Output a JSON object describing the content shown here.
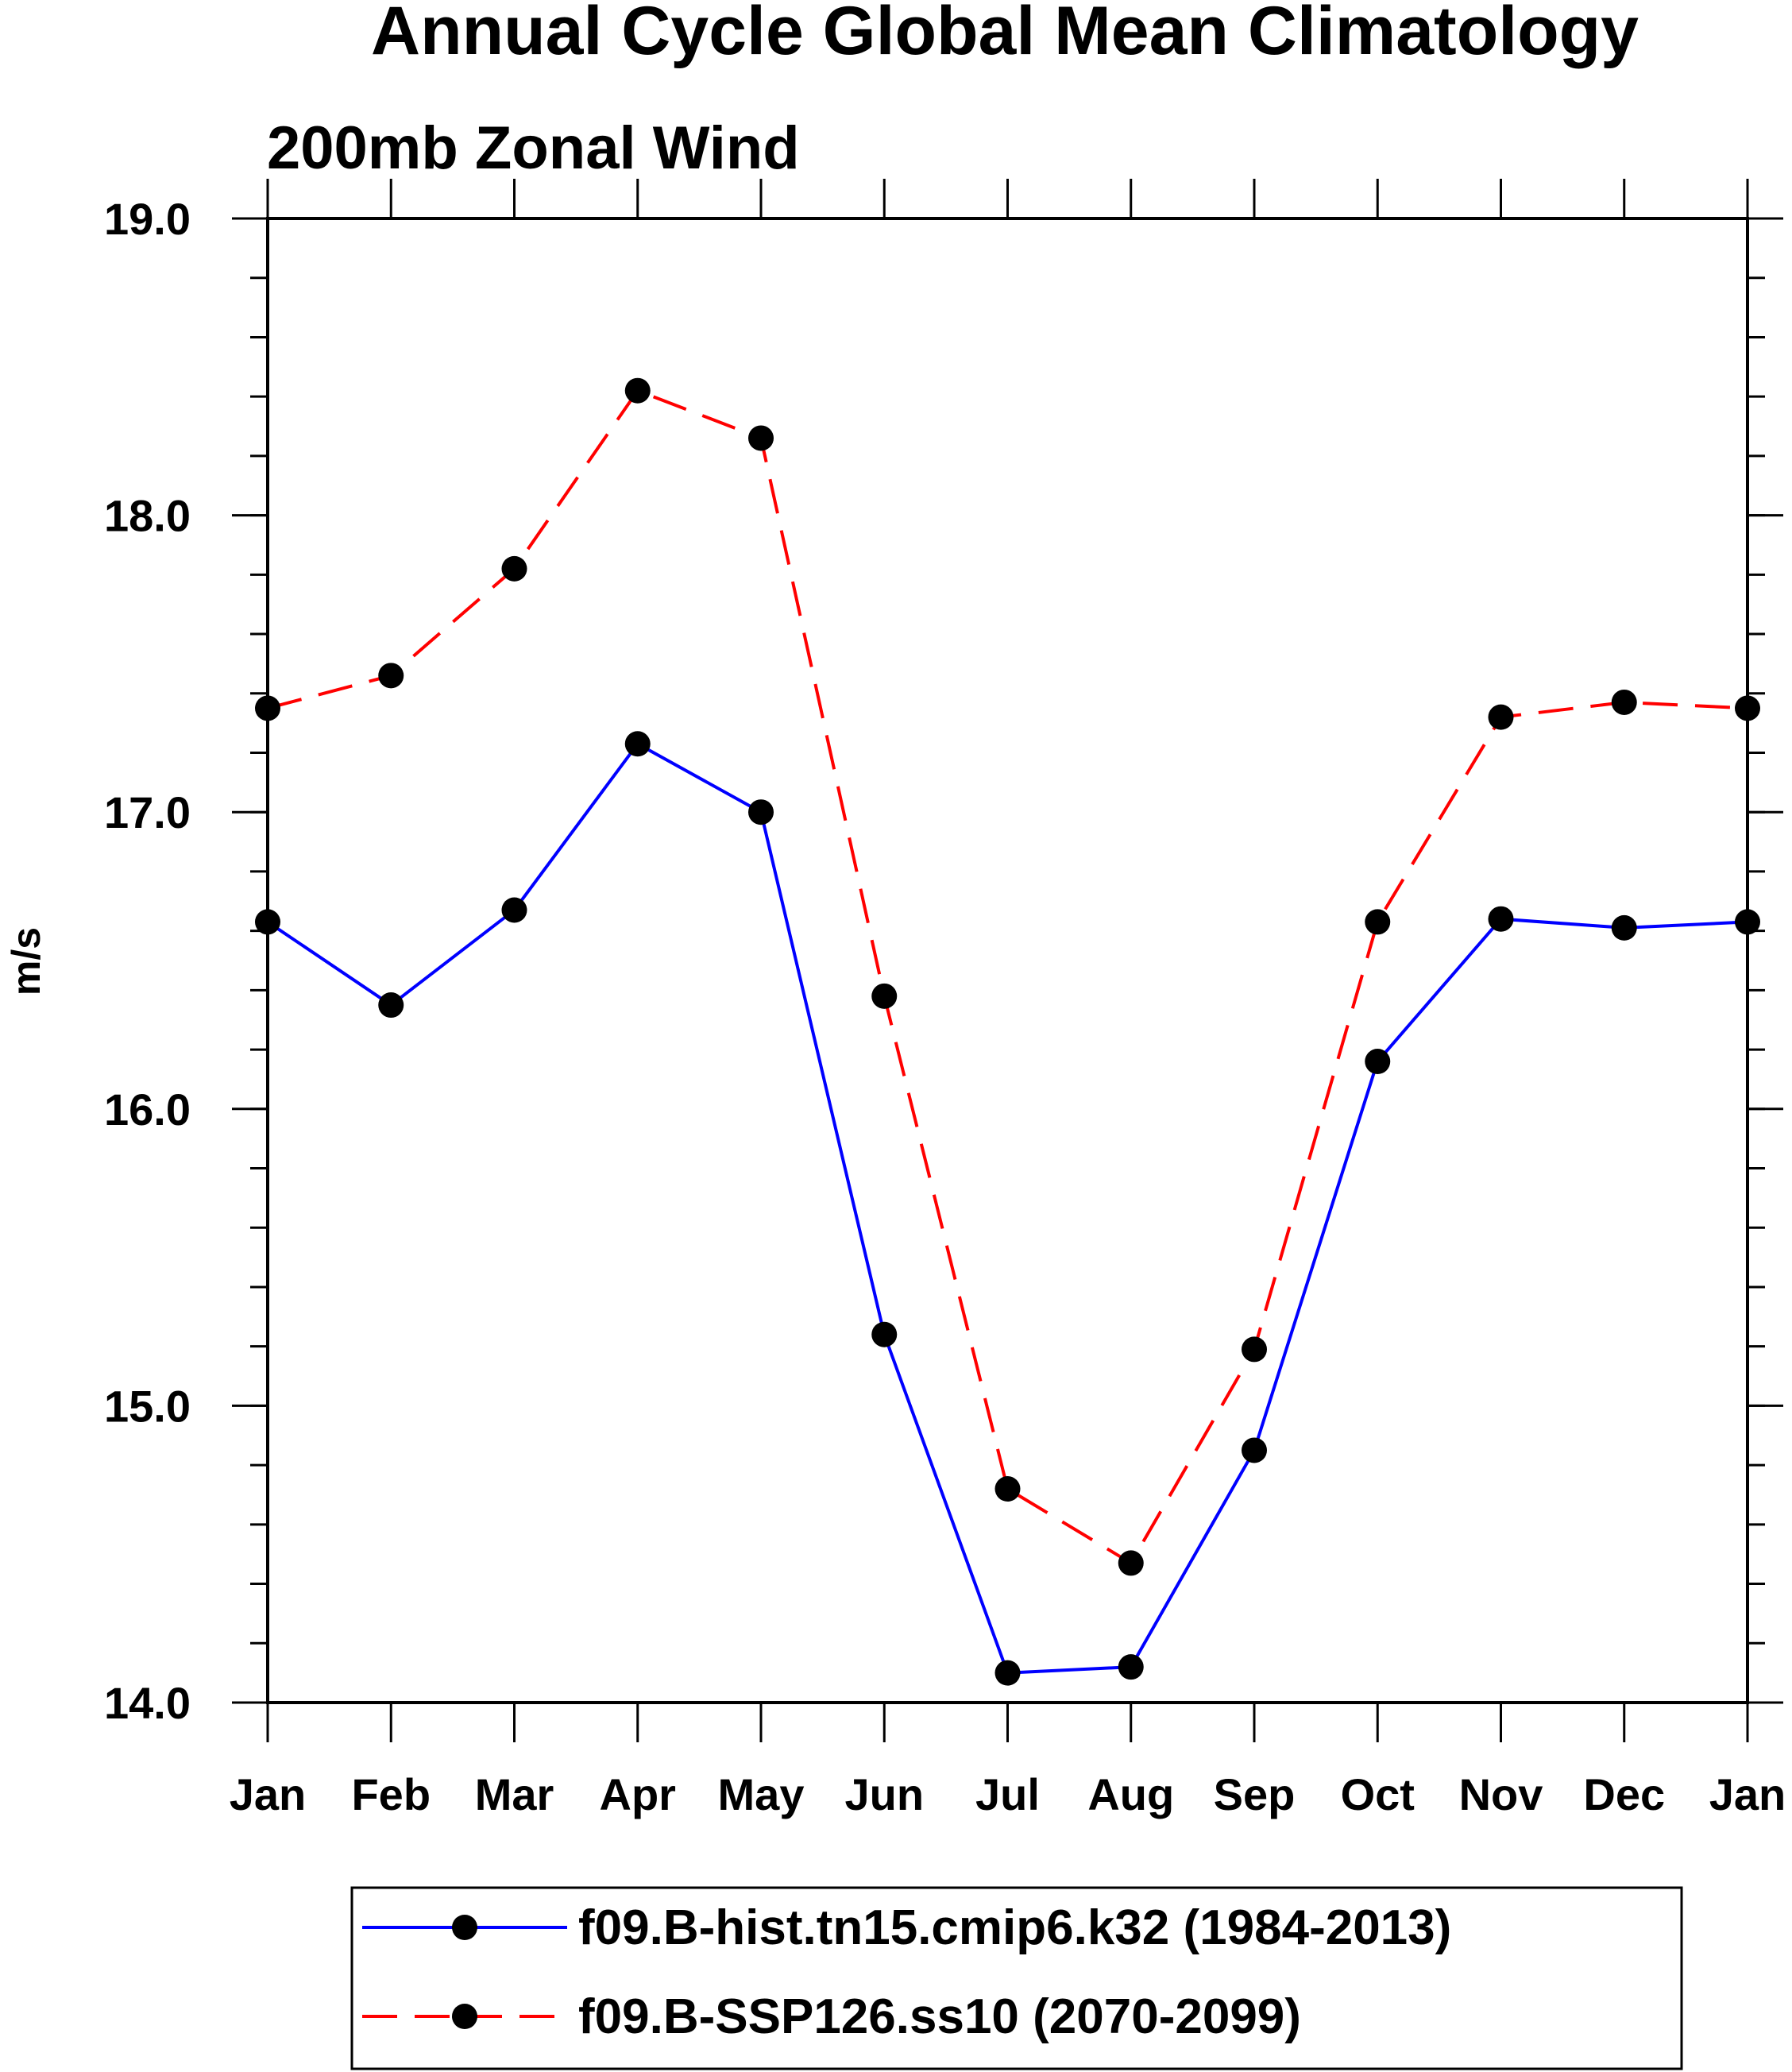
{
  "chart_data": {
    "type": "line",
    "title": "Annual Cycle Global Mean Climatology",
    "subtitle": "200mb Zonal Wind",
    "xlabel": "",
    "ylabel": "m/s",
    "ylim": [
      14.0,
      19.0
    ],
    "yticks": [
      "14.0",
      "15.0",
      "16.0",
      "17.0",
      "18.0",
      "19.0"
    ],
    "categories": [
      "Jan",
      "Feb",
      "Mar",
      "Apr",
      "May",
      "Jun",
      "Jul",
      "Aug",
      "Sep",
      "Oct",
      "Nov",
      "Dec",
      "Jan"
    ],
    "series": [
      {
        "name": "f09.B-hist.tn15.cmip6.k32 (1984-2013)",
        "color": "#0000ff",
        "dash": "solid",
        "values": [
          16.63,
          16.35,
          16.67,
          17.23,
          17.0,
          15.24,
          14.1,
          14.12,
          14.85,
          16.16,
          16.64,
          16.61,
          16.63
        ]
      },
      {
        "name": "f09.B-SSP126.ss10 (2070-2099)",
        "color": "#ff0000",
        "dash": "dashed",
        "values": [
          17.35,
          17.46,
          17.82,
          18.42,
          18.26,
          16.38,
          14.72,
          14.47,
          15.19,
          16.63,
          17.32,
          17.37,
          17.35
        ]
      }
    ],
    "legend_position": "bottom"
  }
}
